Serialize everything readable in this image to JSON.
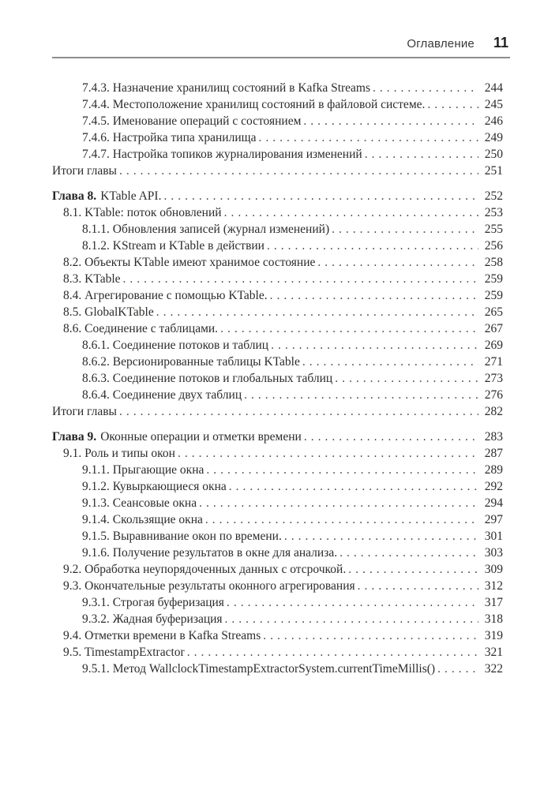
{
  "header": {
    "title": "Оглавление",
    "page_number": "11"
  },
  "toc": {
    "entries": [
      {
        "level": 2,
        "prefix": "",
        "label": "7.4.3. Назначение хранилищ состояний в Kafka Streams",
        "page": "244",
        "spacer": false
      },
      {
        "level": 2,
        "prefix": "",
        "label": "7.4.4. Местоположение хранилищ состояний в файловой системе.",
        "page": "245",
        "spacer": false
      },
      {
        "level": 2,
        "prefix": "",
        "label": "7.4.5. Именование операций с состоянием",
        "page": "246",
        "spacer": false
      },
      {
        "level": 2,
        "prefix": "",
        "label": "7.4.6. Настройка типа хранилища",
        "page": "249",
        "spacer": false
      },
      {
        "level": 2,
        "prefix": "",
        "label": "7.4.7. Настройка топиков журналирования изменений",
        "page": "250",
        "spacer": false
      },
      {
        "level": 0,
        "prefix": "",
        "label": "Итоги главы",
        "page": "251",
        "spacer": false
      },
      {
        "level": 0,
        "prefix": "Глава 8.",
        "label": "KTable API.",
        "page": "252",
        "spacer": true
      },
      {
        "level": 1,
        "prefix": "",
        "label": "8.1. KTable: поток обновлений",
        "page": "253",
        "spacer": false
      },
      {
        "level": 2,
        "prefix": "",
        "label": "8.1.1. Обновления записей (журнал изменений)",
        "page": "255",
        "spacer": false
      },
      {
        "level": 2,
        "prefix": "",
        "label": "8.1.2. KStream и KTable в действии",
        "page": "256",
        "spacer": false
      },
      {
        "level": 1,
        "prefix": "",
        "label": "8.2. Объекты KTable имеют хранимое состояние",
        "page": "258",
        "spacer": false
      },
      {
        "level": 1,
        "prefix": "",
        "label": "8.3. KTable",
        "page": "259",
        "spacer": false
      },
      {
        "level": 1,
        "prefix": "",
        "label": "8.4. Агрегирование с помощью KTable.",
        "page": "259",
        "spacer": false
      },
      {
        "level": 1,
        "prefix": "",
        "label": "8.5. GlobalKTable",
        "page": "265",
        "spacer": false
      },
      {
        "level": 1,
        "prefix": "",
        "label": "8.6. Соединение с таблицами.",
        "page": "267",
        "spacer": false
      },
      {
        "level": 2,
        "prefix": "",
        "label": "8.6.1. Соединение потоков и таблиц",
        "page": "269",
        "spacer": false
      },
      {
        "level": 2,
        "prefix": "",
        "label": "8.6.2. Версионированные таблицы KTable",
        "page": "271",
        "spacer": false
      },
      {
        "level": 2,
        "prefix": "",
        "label": "8.6.3. Соединение потоков и глобальных таблиц",
        "page": "273",
        "spacer": false
      },
      {
        "level": 2,
        "prefix": "",
        "label": "8.6.4. Соединение двух таблиц",
        "page": "276",
        "spacer": false
      },
      {
        "level": 0,
        "prefix": "",
        "label": "Итоги главы",
        "page": "282",
        "spacer": false
      },
      {
        "level": 0,
        "prefix": "Глава 9.",
        "label": "Оконные операции и отметки времени",
        "page": "283",
        "spacer": true
      },
      {
        "level": 1,
        "prefix": "",
        "label": "9.1. Роль и типы окон",
        "page": "287",
        "spacer": false
      },
      {
        "level": 2,
        "prefix": "",
        "label": "9.1.1. Прыгающие окна",
        "page": "289",
        "spacer": false
      },
      {
        "level": 2,
        "prefix": "",
        "label": "9.1.2. Кувыркающиеся окна",
        "page": "292",
        "spacer": false
      },
      {
        "level": 2,
        "prefix": "",
        "label": "9.1.3. Сеансовые окна",
        "page": "294",
        "spacer": false
      },
      {
        "level": 2,
        "prefix": "",
        "label": "9.1.4. Скользящие окна",
        "page": "297",
        "spacer": false
      },
      {
        "level": 2,
        "prefix": "",
        "label": "9.1.5. Выравнивание окон по времени.",
        "page": "301",
        "spacer": false
      },
      {
        "level": 2,
        "prefix": "",
        "label": "9.1.6. Получение результатов в окне для анализа.",
        "page": "303",
        "spacer": false
      },
      {
        "level": 1,
        "prefix": "",
        "label": "9.2. Обработка неупорядоченных данных с отсрочкой.",
        "page": "309",
        "spacer": false
      },
      {
        "level": 1,
        "prefix": "",
        "label": "9.3. Окончательные результаты оконного агрегирования",
        "page": "312",
        "spacer": false
      },
      {
        "level": 2,
        "prefix": "",
        "label": "9.3.1. Строгая буферизация",
        "page": "317",
        "spacer": false
      },
      {
        "level": 2,
        "prefix": "",
        "label": "9.3.2. Жадная буферизация",
        "page": "318",
        "spacer": false
      },
      {
        "level": 1,
        "prefix": "",
        "label": "9.4. Отметки времени в Kafka Streams",
        "page": "319",
        "spacer": false
      },
      {
        "level": 1,
        "prefix": "",
        "label": "9.5. TimestampExtractor",
        "page": "321",
        "spacer": false
      },
      {
        "level": 2,
        "prefix": "",
        "label": "9.5.1. Метод WallclockTimestampExtractorSystem.currentTimeMillis()",
        "page": "322",
        "spacer": false
      }
    ]
  }
}
